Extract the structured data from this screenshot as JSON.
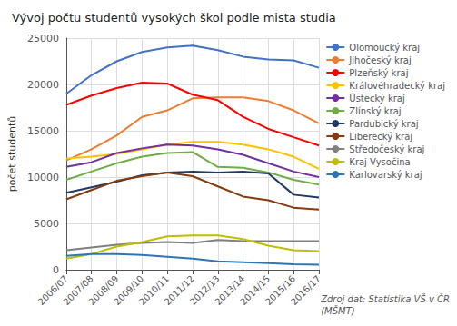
{
  "chart_data": {
    "type": "line",
    "title": "Vývoj počtu studentů vysokých škol podle mista studia",
    "ylabel": "počet studentů",
    "annotations": [
      "Zdroj dat: Statistika VŠ v ČR\n(MŠMT)"
    ],
    "categories": [
      "2006/07",
      "2007/08",
      "2008/09",
      "2009/10",
      "2010/11",
      "2011/12",
      "2012/13",
      "2013/14",
      "2014/15",
      "2015/16",
      "2016/17"
    ],
    "series": [
      {
        "name": "Olomoucký kraj",
        "color": "#4472C4",
        "values": [
          19000,
          21000,
          22500,
          23500,
          24000,
          24200,
          23700,
          23000,
          22700,
          22600,
          21800
        ]
      },
      {
        "name": "Jihočeský kraj",
        "color": "#ED7D31",
        "values": [
          11800,
          13000,
          14500,
          16500,
          17200,
          18500,
          18600,
          18600,
          18200,
          17200,
          15800
        ]
      },
      {
        "name": "Plzeňský kraj",
        "color": "#FF0000",
        "values": [
          17800,
          18800,
          19600,
          20200,
          20100,
          18900,
          18300,
          16500,
          15200,
          14300,
          13400
        ]
      },
      {
        "name": "Královéhradecký kraj",
        "color": "#FFC000",
        "values": [
          12000,
          12200,
          12500,
          13000,
          13500,
          13800,
          13800,
          13500,
          13000,
          12200,
          10900
        ]
      },
      {
        "name": "Ústecký kraj",
        "color": "#7030A0",
        "values": [
          11100,
          11600,
          12600,
          13100,
          13500,
          13400,
          13000,
          12400,
          11500,
          10600,
          10000
        ]
      },
      {
        "name": "Zlínský kraj",
        "color": "#70AD47",
        "values": [
          9700,
          10600,
          11500,
          12200,
          12600,
          12700,
          11100,
          11000,
          10500,
          9700,
          9200
        ]
      },
      {
        "name": "Pardubický kraj",
        "color": "#1F3864",
        "values": [
          8300,
          8900,
          9500,
          10200,
          10500,
          10600,
          10500,
          10600,
          10400,
          8100,
          7800
        ]
      },
      {
        "name": "Liberecký kraj",
        "color": "#843C0C",
        "values": [
          7600,
          8600,
          9600,
          10100,
          10500,
          10100,
          9000,
          7900,
          7500,
          6700,
          6500
        ]
      },
      {
        "name": "Středočeský kraj",
        "color": "#808080",
        "values": [
          2100,
          2400,
          2700,
          2900,
          3000,
          2900,
          3200,
          3100,
          3100,
          3100,
          3100
        ]
      },
      {
        "name": "Kraj Vysočina",
        "color": "#BFBF00",
        "values": [
          1200,
          1700,
          2500,
          3000,
          3600,
          3700,
          3700,
          3300,
          2600,
          2100,
          2000
        ]
      },
      {
        "name": "Karlovarský kraj",
        "color": "#2E75B6",
        "values": [
          1500,
          1700,
          1700,
          1600,
          1400,
          1200,
          900,
          800,
          700,
          600,
          550
        ]
      }
    ],
    "ylim": [
      0,
      25000
    ],
    "yticks": [
      0,
      5000,
      10000,
      15000,
      20000,
      25000
    ],
    "grid": true,
    "legend": "right"
  }
}
